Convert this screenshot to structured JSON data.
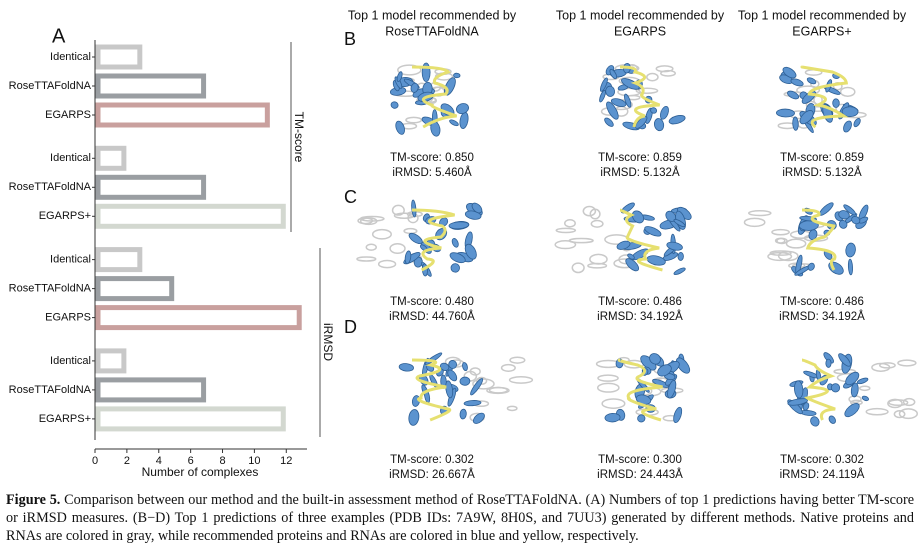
{
  "chart_data": {
    "type": "hbar",
    "panel_label": "A",
    "categories": [
      "Identical",
      "RoseTTAFoldNA",
      "EGARPS",
      "Identical",
      "RoseTTAFoldNA",
      "EGARPS+",
      "Identical",
      "RoseTTAFoldNA",
      "EGARPS",
      "Identical",
      "RoseTTAFoldNA",
      "EGARPS+"
    ],
    "values": [
      3,
      7,
      11,
      2,
      7,
      12,
      3,
      5,
      13,
      2,
      7,
      12
    ],
    "colors": [
      "#c8c8c8",
      "#9a9ea2",
      "#c9a09e",
      "#c8c8c8",
      "#9a9ea2",
      "#d3d8d0",
      "#c8c8c8",
      "#9a9ea2",
      "#c9a09e",
      "#c8c8c8",
      "#9a9ea2",
      "#d3d8d0"
    ],
    "group_labels": [
      "TM-score",
      "iRMSD"
    ],
    "xlabel": "Number of complexes",
    "xlim": [
      0,
      13.3
    ],
    "xticks": [
      0,
      2,
      4,
      6,
      8,
      10,
      12
    ]
  },
  "column_titles": [
    [
      "Top 1 model recommended by",
      "RoseTTAFoldNA"
    ],
    [
      "Top 1 model recommended by",
      "EGARPS"
    ],
    [
      "Top 1 model recommended by",
      "EGARPS+"
    ]
  ],
  "rows": [
    {
      "label": "B",
      "scores": [
        [
          "TM-score: 0.850",
          "iRMSD: 5.460Å"
        ],
        [
          "TM-score: 0.859",
          "iRMSD: 5.132Å"
        ],
        [
          "TM-score: 0.859",
          "iRMSD: 5.132Å"
        ]
      ]
    },
    {
      "label": "C",
      "scores": [
        [
          "TM-score: 0.480",
          "iRMSD: 44.760Å"
        ],
        [
          "TM-score: 0.486",
          "iRMSD: 34.192Å"
        ],
        [
          "TM-score: 0.486",
          "iRMSD: 34.192Å"
        ]
      ]
    },
    {
      "label": "D",
      "scores": [
        [
          "TM-score: 0.302",
          "iRMSD: 26.667Å"
        ],
        [
          "TM-score: 0.300",
          "iRMSD: 24.443Å"
        ],
        [
          "TM-score: 0.302",
          "iRMSD: 24.119Å"
        ]
      ]
    }
  ],
  "caption": {
    "label": "Figure 5.",
    "text": "Comparison between our method and the built-in assessment method of RoseTTAFoldNA. (A) Numbers of top 1 predictions having better TM-score or iRMSD measures. (B−D) Top 1 predictions of three examples (PDB IDs: 7A9W, 8H0S, and 7UU3) generated by different methods. Native proteins and RNAs are colored in gray, while recommended proteins and RNAs are colored in blue and yellow, respectively."
  }
}
